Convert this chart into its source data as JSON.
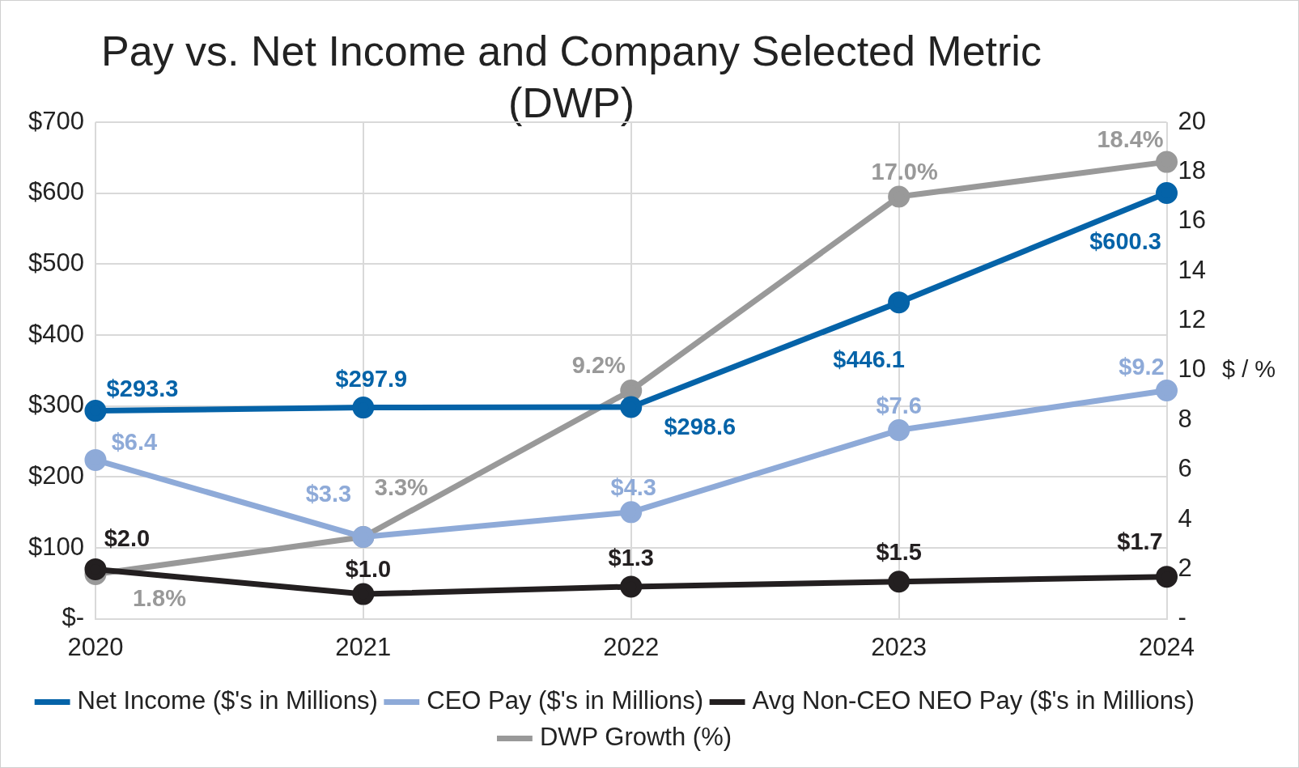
{
  "chart_data": {
    "type": "line",
    "title": "Pay vs. Net Income and Company Selected Metric (DWP)",
    "categories": [
      "2020",
      "2021",
      "2022",
      "2023",
      "2024"
    ],
    "series": [
      {
        "name": "Net Income ($'s in Millions)",
        "color": "#0563a8",
        "values": [
          293.3,
          297.9,
          298.6,
          446.1,
          600.3
        ],
        "value_labels": [
          "$293.3",
          "$297.9",
          "$298.6",
          "$446.1",
          "$600.3"
        ]
      },
      {
        "name": "CEO Pay ($'s in Millions)",
        "color": "#8eaad8",
        "axis": "y2",
        "values": [
          6.4,
          3.3,
          4.3,
          7.6,
          9.2
        ],
        "value_labels": [
          "$6.4",
          "$3.3",
          "$4.3",
          "$7.6",
          "$9.2"
        ]
      },
      {
        "name": "Avg Non-CEO NEO Pay ($'s in Millions)",
        "color": "#231f20",
        "axis": "y2",
        "values": [
          2.0,
          1.0,
          1.3,
          1.5,
          1.7
        ],
        "value_labels": [
          "$2.0",
          "$1.0",
          "$1.3",
          "$1.5",
          "$1.7"
        ]
      },
      {
        "name": "DWP Growth (%)",
        "color": "#999999",
        "axis": "y2",
        "values": [
          1.8,
          3.3,
          9.2,
          17.0,
          18.4
        ],
        "value_labels": [
          "1.8%",
          "3.3%",
          "9.2%",
          "17.0%",
          "18.4%"
        ]
      }
    ],
    "ylim": [
      0,
      700
    ],
    "yticks": [
      {
        "value": 0,
        "label": "$-"
      },
      {
        "value": 100,
        "label": "$100"
      },
      {
        "value": 200,
        "label": "$200"
      },
      {
        "value": 300,
        "label": "$300"
      },
      {
        "value": 400,
        "label": "$400"
      },
      {
        "value": 500,
        "label": "$500"
      },
      {
        "value": 600,
        "label": "$600"
      },
      {
        "value": 700,
        "label": "$700"
      }
    ],
    "y2lim": [
      0,
      20
    ],
    "y2ticks": [
      {
        "value": 0,
        "label": "-"
      },
      2,
      4,
      6,
      8,
      10,
      12,
      14,
      16,
      18,
      20
    ],
    "y2label": "$ / %",
    "grid": true,
    "legend": "bottom",
    "marker": "circle",
    "line_style": "solid"
  }
}
